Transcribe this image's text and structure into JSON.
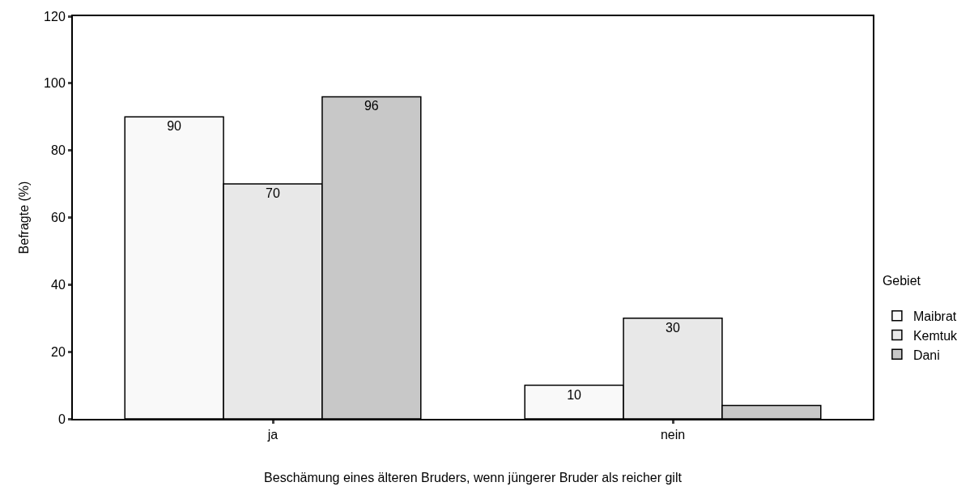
{
  "chart_data": {
    "type": "bar",
    "xlabel": "Beschämung eines älteren Bruders, wenn jüngerer Bruder als reicher gilt",
    "ylabel": "Befragte (%)",
    "legend_title": "Gebiet",
    "categories": [
      "ja",
      "nein"
    ],
    "series": [
      {
        "name": "Maibrat",
        "color": "#f9f9f9",
        "values": [
          90,
          10
        ],
        "value_labels": [
          "90",
          "10"
        ]
      },
      {
        "name": "Kemtuk",
        "color": "#e8e8e8",
        "values": [
          70,
          30
        ],
        "value_labels": [
          "70",
          "30"
        ]
      },
      {
        "name": "Dani",
        "color": "#c8c8c8",
        "values": [
          96,
          4
        ],
        "value_labels": [
          "96",
          null
        ]
      }
    ],
    "ylim": [
      0,
      120
    ],
    "yticks": [
      0,
      20,
      40,
      60,
      80,
      100,
      120
    ],
    "grid": false,
    "legend": "right"
  }
}
